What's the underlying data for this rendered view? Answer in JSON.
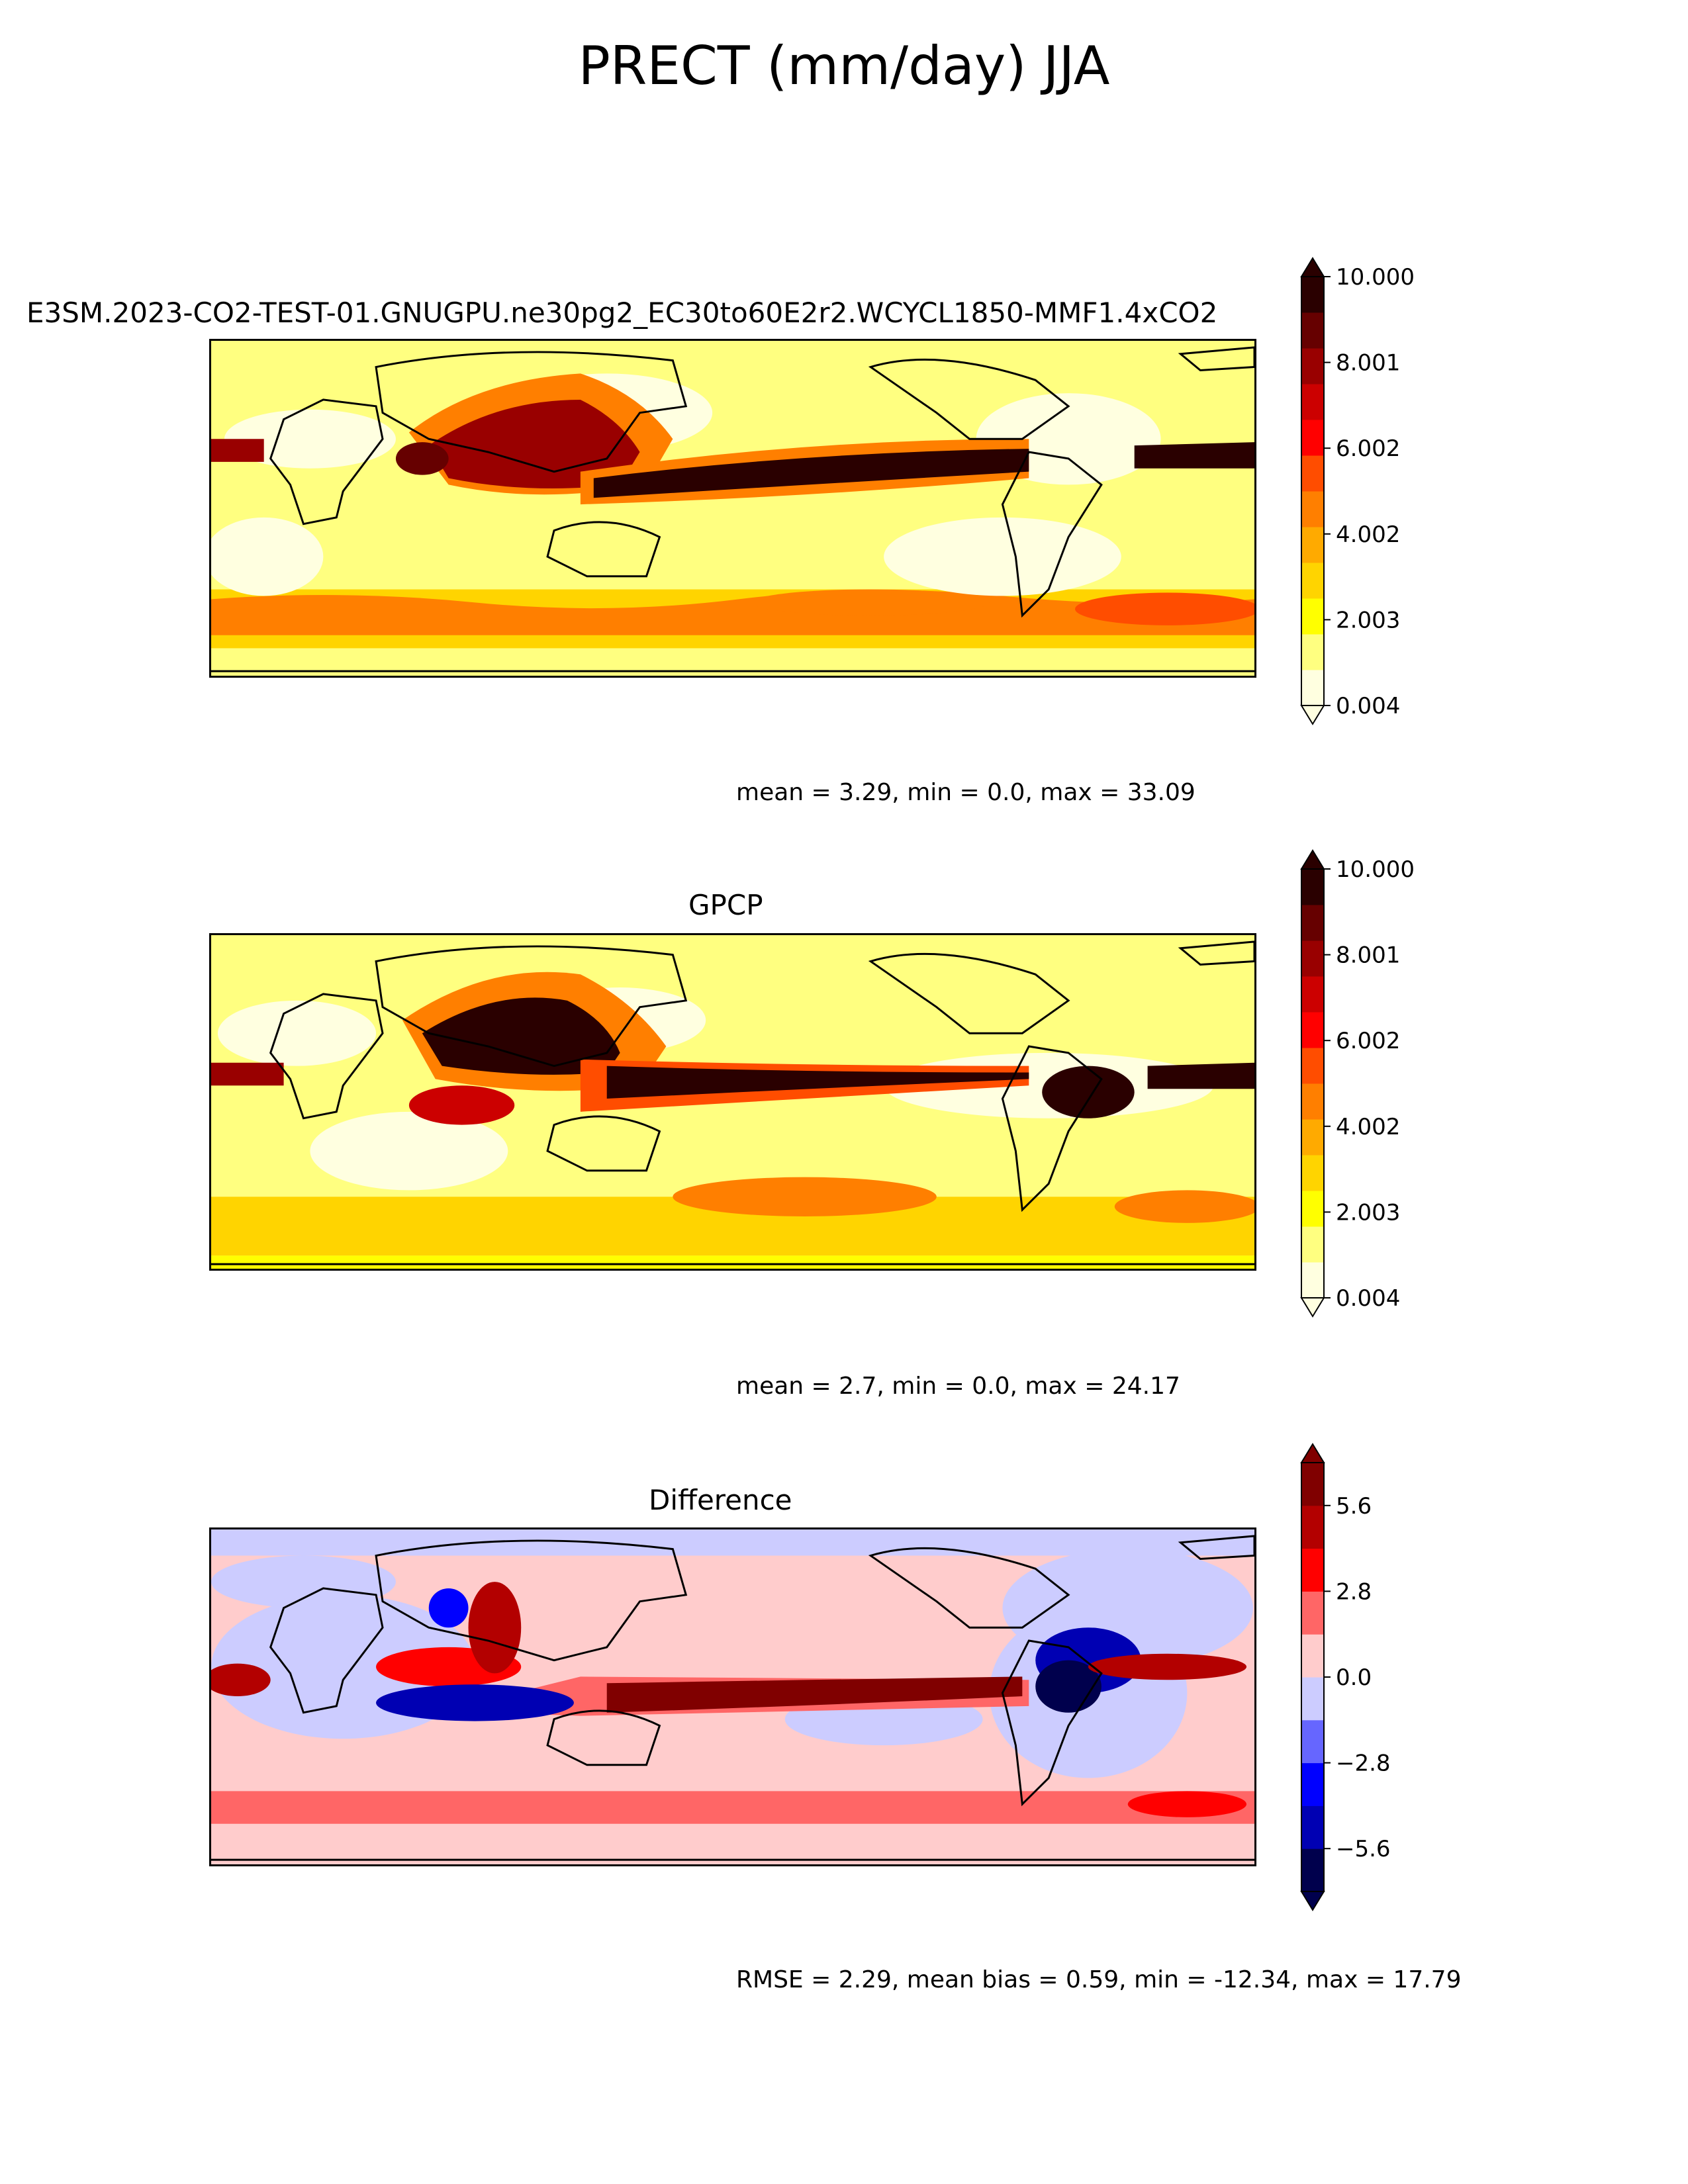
{
  "figure": {
    "title": "PRECT (mm/day) JJA"
  },
  "panels": [
    {
      "id": "test",
      "title": "E3SM.2023-CO2-TEST-01.GNUGPU.ne30pg2_EC30to60E2r2.WCYCL1850-MMF1.4xCO2",
      "stats": "mean = 3.29, min = 0.0, max = 33.09",
      "colormap": "precip",
      "colorbar": {
        "ticks": [
          "0.004",
          "2.003",
          "4.002",
          "6.002",
          "8.001",
          "10.000"
        ],
        "extend": "both"
      }
    },
    {
      "id": "ref",
      "title": "GPCP",
      "stats": "mean = 2.7, min = 0.0, max = 24.17",
      "colormap": "precip",
      "colorbar": {
        "ticks": [
          "0.004",
          "2.003",
          "4.002",
          "6.002",
          "8.001",
          "10.000"
        ],
        "extend": "both"
      }
    },
    {
      "id": "diff",
      "title": "Difference",
      "stats": "RMSE = 2.29, mean bias = 0.59, min = -12.34, max = 17.79",
      "colormap": "diverging",
      "colorbar": {
        "ticks": [
          "−5.6",
          "−2.8",
          "0.0",
          "2.8",
          "5.6"
        ],
        "extend": "both"
      }
    }
  ],
  "colormaps": {
    "precip": [
      "#ffffe0",
      "#ffff80",
      "#ffff00",
      "#ffd400",
      "#ffaa00",
      "#ff7f00",
      "#ff4d00",
      "#ff0000",
      "#cc0000",
      "#990000",
      "#660000",
      "#2a0000"
    ],
    "diverging": [
      "#00004d",
      "#0000b3",
      "#0000ff",
      "#6666ff",
      "#ccccff",
      "#ffcccc",
      "#ff6666",
      "#ff0000",
      "#b30000",
      "#800000"
    ]
  },
  "chart_data": [
    {
      "type": "heatmap",
      "title": "E3SM.2023-CO2-TEST-01.GNUGPU.ne30pg2_EC30to60E2r2.WCYCL1850-MMF1.4xCO2",
      "variable": "PRECT (mm/day) JJA",
      "projection": "global map, 0° centered",
      "colorbar_range": [
        0.004,
        10.0
      ],
      "stats": {
        "mean": 3.29,
        "min": 0.0,
        "max": 33.09
      }
    },
    {
      "type": "heatmap",
      "title": "GPCP",
      "variable": "PRECT (mm/day) JJA",
      "projection": "global map, 0° centered",
      "colorbar_range": [
        0.004,
        10.0
      ],
      "stats": {
        "mean": 2.7,
        "min": 0.0,
        "max": 24.17
      }
    },
    {
      "type": "heatmap",
      "title": "Difference",
      "variable": "PRECT (mm/day) JJA",
      "colorbar_ticks": [
        -5.6,
        -2.8,
        0.0,
        2.8,
        5.6
      ],
      "stats": {
        "RMSE": 2.29,
        "mean_bias": 0.59,
        "min": -12.34,
        "max": 17.79
      }
    }
  ]
}
